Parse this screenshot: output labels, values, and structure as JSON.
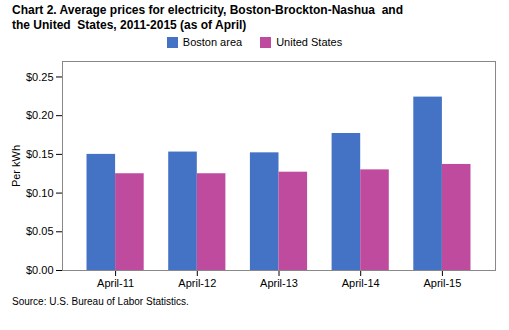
{
  "chart_data": {
    "type": "bar",
    "title": "Chart 2. Average prices for electricity, Boston-Brockton-Nashua  and\nthe United  States, 2011-2015 (as of April)",
    "ylabel": "Per kWh",
    "source": "Source: U.S. Bureau of Labor Statistics.",
    "categories": [
      "April-11",
      "April-12",
      "April-13",
      "April-14",
      "April-15"
    ],
    "series": [
      {
        "name": "Boston area",
        "color": "#4472C4",
        "values": [
          0.15,
          0.153,
          0.152,
          0.177,
          0.224
        ]
      },
      {
        "name": "United States",
        "color": "#BE4B9E",
        "values": [
          0.125,
          0.125,
          0.127,
          0.13,
          0.137
        ]
      }
    ],
    "ylim": [
      0,
      0.27
    ],
    "yticks": [
      {
        "value": 0.0,
        "label": "$0.00"
      },
      {
        "value": 0.05,
        "label": "$0.05"
      },
      {
        "value": 0.1,
        "label": "$0.10"
      },
      {
        "value": 0.15,
        "label": "$0.15"
      },
      {
        "value": 0.2,
        "label": "$0.20"
      },
      {
        "value": 0.25,
        "label": "$0.25"
      }
    ],
    "legend": "top",
    "grid": false
  }
}
